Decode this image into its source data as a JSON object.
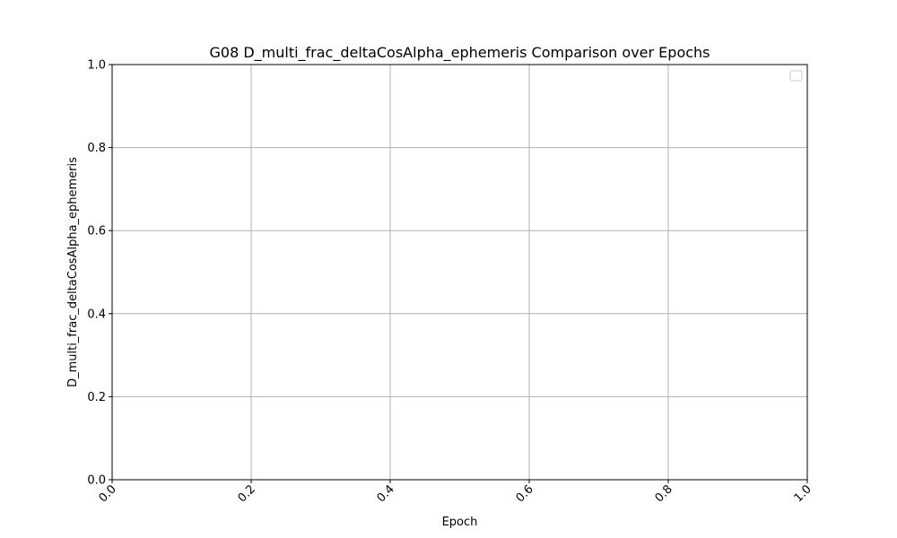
{
  "chart_data": {
    "type": "line",
    "title": "G08 D_multi_frac_deltaCosAlpha_ephemeris Comparison over Epochs",
    "xlabel": "Epoch",
    "ylabel": "D_multi_frac_deltaCosAlpha_ephemeris",
    "xlim": [
      0.0,
      1.0
    ],
    "ylim": [
      0.0,
      1.0
    ],
    "x_ticks": [
      "0.0",
      "0.2",
      "0.4",
      "0.6",
      "0.8",
      "1.0"
    ],
    "y_ticks": [
      "0.0",
      "0.2",
      "0.4",
      "0.6",
      "0.8",
      "1.0"
    ],
    "x_tick_rotation": "45 degrees",
    "grid": true,
    "legend": {
      "placement": "top-right",
      "entries": []
    },
    "series": []
  },
  "colors": {
    "background": "#ffffff",
    "grid": "#b0b0b0",
    "axis": "#000000",
    "legend_border": "#cccccc"
  }
}
